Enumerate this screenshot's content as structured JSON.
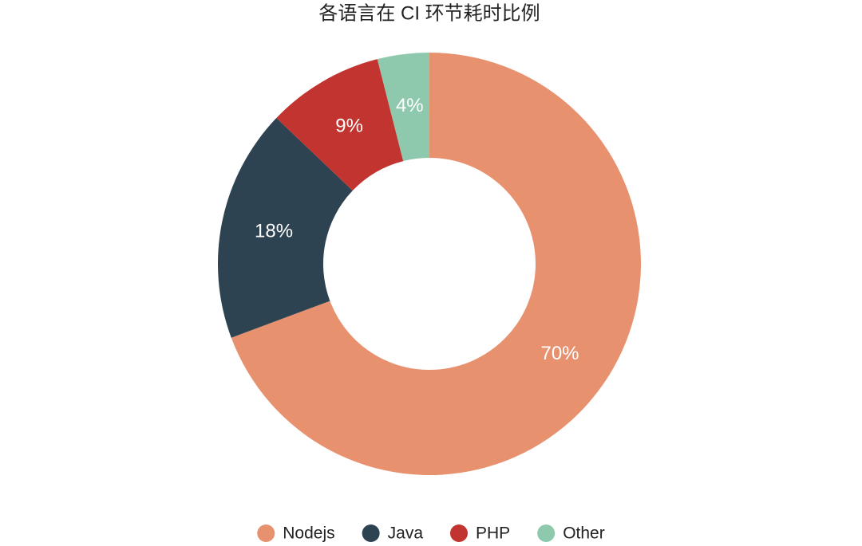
{
  "chart_data": {
    "type": "pie",
    "title": "各语言在 CI 环节耗时比例",
    "categories": [
      "Nodejs",
      "Java",
      "PHP",
      "Other"
    ],
    "values": [
      70,
      18,
      9,
      4
    ],
    "value_labels": [
      "70%",
      "18%",
      "9%",
      "4%"
    ],
    "colors": [
      "#e8916f",
      "#2e4352",
      "#c1342f",
      "#8ec9ad"
    ],
    "legend": "bottom"
  }
}
